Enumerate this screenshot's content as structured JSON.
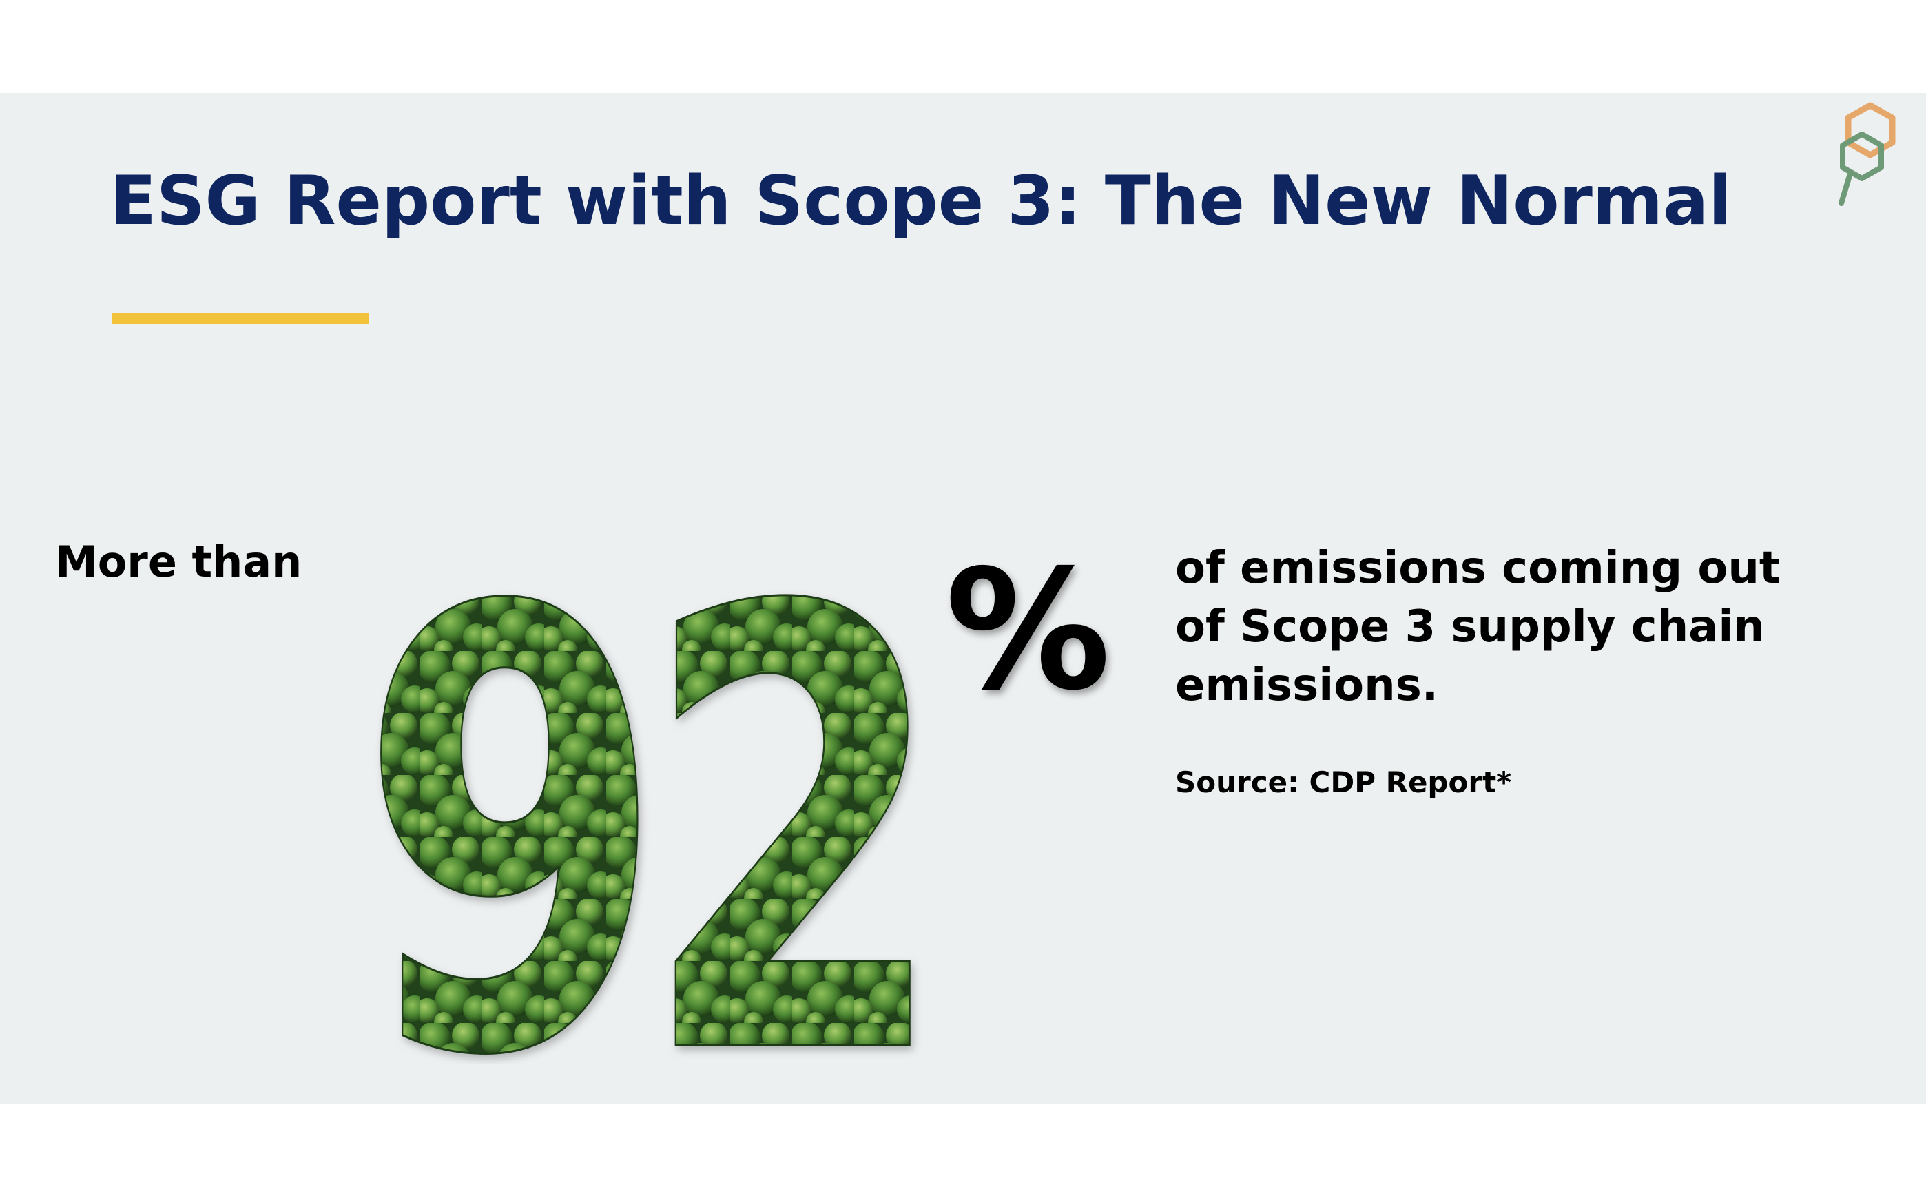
{
  "slide": {
    "title": "ESG Report with Scope 3: The New Normal",
    "lead_text": "More than",
    "big_number": "92",
    "percent_sign": "%",
    "description": "of emissions coming out of Scope 3 supply chain emissions.",
    "source": "Source: CDP Report*"
  },
  "colors": {
    "title": "#0e2560",
    "accent": "#f2c23b",
    "background": "#edf0f1",
    "foliage": "#3f6e2e",
    "logo_orange": "#e5a86a",
    "logo_green": "#6f9a78"
  },
  "icons": {
    "logo": "hexagon-leaf-logo-icon"
  }
}
